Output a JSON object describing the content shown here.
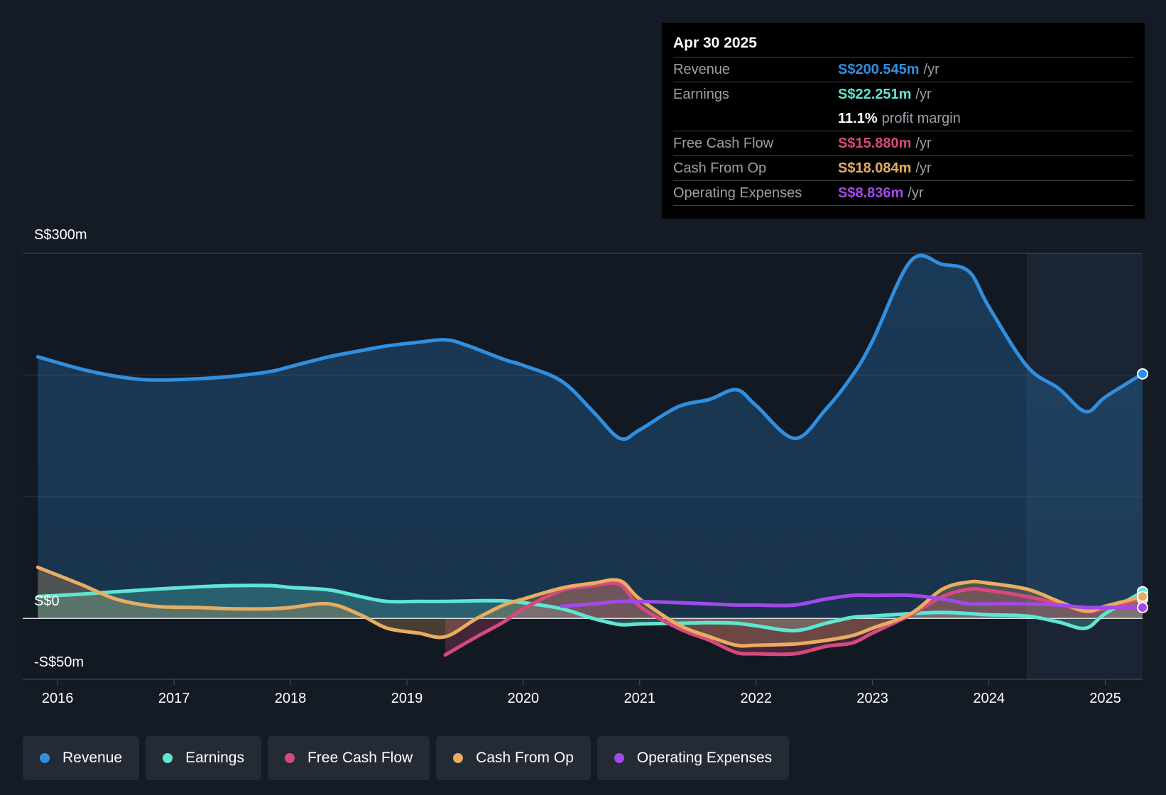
{
  "tooltip": {
    "date": "Apr 30 2025",
    "rows": [
      {
        "label": "Revenue",
        "value": "S$200.545m",
        "unit": "/yr",
        "color": "#2f8fe0"
      },
      {
        "label": "Earnings",
        "value": "S$22.251m",
        "unit": "/yr",
        "color": "#5ee6d2"
      },
      {
        "label": "",
        "value": "11.1%",
        "unit": "profit margin",
        "color": "#ffffff"
      },
      {
        "label": "Free Cash Flow",
        "value": "S$15.880m",
        "unit": "/yr",
        "color": "#d6497f"
      },
      {
        "label": "Cash From Op",
        "value": "S$18.084m",
        "unit": "/yr",
        "color": "#e8ad60"
      },
      {
        "label": "Operating Expenses",
        "value": "S$8.836m",
        "unit": "/yr",
        "color": "#a24ae8"
      }
    ]
  },
  "axis": {
    "y_top_label": "S$300m",
    "y_zero_label": "S$0",
    "y_bottom_label": "-S$50m"
  },
  "legend": [
    {
      "label": "Revenue",
      "color": "#2f8fe0"
    },
    {
      "label": "Earnings",
      "color": "#5ee6d2"
    },
    {
      "label": "Free Cash Flow",
      "color": "#d6497f"
    },
    {
      "label": "Cash From Op",
      "color": "#e8ad60"
    },
    {
      "label": "Operating Expenses",
      "color": "#a24ae8"
    }
  ],
  "chart_data": {
    "type": "line",
    "title": "",
    "xlabel": "",
    "ylabel": "",
    "xlim": [
      2015.7,
      2025.32
    ],
    "ylim": [
      -50,
      300
    ],
    "x_ticks": [
      2016,
      2017,
      2018,
      2019,
      2020,
      2021,
      2022,
      2023,
      2024,
      2025
    ],
    "x_tick_labels": [
      "2016",
      "2017",
      "2018",
      "2019",
      "2020",
      "2021",
      "2022",
      "2023",
      "2024",
      "2025"
    ],
    "forecast_start": 2024.33,
    "series": [
      {
        "name": "Revenue",
        "color": "#2f8fe0",
        "fill": true,
        "points": [
          [
            2015.83,
            215
          ],
          [
            2016.2,
            205
          ],
          [
            2016.5,
            199
          ],
          [
            2016.8,
            196
          ],
          [
            2017.2,
            197
          ],
          [
            2017.5,
            199
          ],
          [
            2017.83,
            203
          ],
          [
            2018.0,
            207
          ],
          [
            2018.33,
            215
          ],
          [
            2018.6,
            220
          ],
          [
            2018.83,
            224
          ],
          [
            2019.1,
            227
          ],
          [
            2019.33,
            229
          ],
          [
            2019.5,
            225
          ],
          [
            2019.83,
            213
          ],
          [
            2020.0,
            208
          ],
          [
            2020.33,
            195
          ],
          [
            2020.6,
            170
          ],
          [
            2020.83,
            148
          ],
          [
            2021.0,
            155
          ],
          [
            2021.33,
            174
          ],
          [
            2021.6,
            180
          ],
          [
            2021.83,
            188
          ],
          [
            2022.0,
            175
          ],
          [
            2022.33,
            148
          ],
          [
            2022.6,
            172
          ],
          [
            2022.83,
            200
          ],
          [
            2023.0,
            228
          ],
          [
            2023.33,
            294
          ],
          [
            2023.6,
            291
          ],
          [
            2023.83,
            285
          ],
          [
            2024.0,
            256
          ],
          [
            2024.33,
            207
          ],
          [
            2024.6,
            189
          ],
          [
            2024.83,
            170
          ],
          [
            2025.0,
            182
          ],
          [
            2025.32,
            201
          ]
        ]
      },
      {
        "name": "Earnings",
        "color": "#5ee6d2",
        "fill": true,
        "points": [
          [
            2015.83,
            18
          ],
          [
            2016.2,
            20
          ],
          [
            2016.5,
            22
          ],
          [
            2016.83,
            24
          ],
          [
            2017.2,
            26
          ],
          [
            2017.5,
            27
          ],
          [
            2017.83,
            27
          ],
          [
            2018.0,
            25.5
          ],
          [
            2018.33,
            23.5
          ],
          [
            2018.6,
            18
          ],
          [
            2018.83,
            14
          ],
          [
            2019.1,
            14
          ],
          [
            2019.33,
            14
          ],
          [
            2019.6,
            14.5
          ],
          [
            2019.83,
            14.5
          ],
          [
            2020.0,
            13
          ],
          [
            2020.33,
            8
          ],
          [
            2020.6,
            0
          ],
          [
            2020.83,
            -5
          ],
          [
            2021.0,
            -4.5
          ],
          [
            2021.33,
            -4
          ],
          [
            2021.6,
            -3.5
          ],
          [
            2021.83,
            -4
          ],
          [
            2022.0,
            -6
          ],
          [
            2022.33,
            -10
          ],
          [
            2022.6,
            -4
          ],
          [
            2022.83,
            1
          ],
          [
            2023.0,
            2
          ],
          [
            2023.33,
            4
          ],
          [
            2023.6,
            5
          ],
          [
            2023.83,
            4
          ],
          [
            2024.0,
            3
          ],
          [
            2024.33,
            2
          ],
          [
            2024.6,
            -3
          ],
          [
            2024.83,
            -8
          ],
          [
            2025.0,
            4
          ],
          [
            2025.32,
            22
          ]
        ]
      },
      {
        "name": "Free Cash Flow",
        "color": "#d6497f",
        "fill": true,
        "points": [
          [
            2019.33,
            -30
          ],
          [
            2019.6,
            -15
          ],
          [
            2019.83,
            -3
          ],
          [
            2020.0,
            8
          ],
          [
            2020.33,
            23
          ],
          [
            2020.6,
            27
          ],
          [
            2020.83,
            28
          ],
          [
            2021.0,
            10
          ],
          [
            2021.33,
            -8
          ],
          [
            2021.6,
            -18
          ],
          [
            2021.83,
            -28
          ],
          [
            2022.0,
            -29
          ],
          [
            2022.33,
            -29
          ],
          [
            2022.6,
            -23
          ],
          [
            2022.83,
            -20
          ],
          [
            2023.0,
            -12
          ],
          [
            2023.33,
            3
          ],
          [
            2023.6,
            18
          ],
          [
            2023.83,
            24
          ],
          [
            2024.0,
            23
          ],
          [
            2024.33,
            18
          ],
          [
            2024.6,
            12
          ],
          [
            2024.83,
            6
          ],
          [
            2025.0,
            8
          ],
          [
            2025.32,
            16
          ]
        ]
      },
      {
        "name": "Cash From Op",
        "color": "#e8ad60",
        "fill": true,
        "points": [
          [
            2015.83,
            42
          ],
          [
            2016.2,
            28
          ],
          [
            2016.5,
            16
          ],
          [
            2016.83,
            10
          ],
          [
            2017.2,
            9
          ],
          [
            2017.5,
            8
          ],
          [
            2017.83,
            8
          ],
          [
            2018.0,
            9
          ],
          [
            2018.33,
            12
          ],
          [
            2018.6,
            3
          ],
          [
            2018.83,
            -8
          ],
          [
            2019.1,
            -12
          ],
          [
            2019.33,
            -15
          ],
          [
            2019.6,
            0
          ],
          [
            2019.83,
            11
          ],
          [
            2020.0,
            16
          ],
          [
            2020.33,
            25
          ],
          [
            2020.6,
            29
          ],
          [
            2020.83,
            31
          ],
          [
            2021.0,
            16
          ],
          [
            2021.33,
            -5
          ],
          [
            2021.6,
            -15
          ],
          [
            2021.83,
            -22
          ],
          [
            2022.0,
            -22
          ],
          [
            2022.33,
            -21
          ],
          [
            2022.6,
            -18
          ],
          [
            2022.83,
            -14
          ],
          [
            2023.0,
            -8
          ],
          [
            2023.33,
            4
          ],
          [
            2023.6,
            24
          ],
          [
            2023.83,
            30
          ],
          [
            2024.0,
            29
          ],
          [
            2024.33,
            24
          ],
          [
            2024.6,
            14
          ],
          [
            2024.83,
            6
          ],
          [
            2025.0,
            10
          ],
          [
            2025.32,
            18
          ]
        ]
      },
      {
        "name": "Operating Expenses",
        "color": "#a24ae8",
        "fill": false,
        "points": [
          [
            2020.33,
            10
          ],
          [
            2020.6,
            12
          ],
          [
            2020.83,
            14
          ],
          [
            2021.0,
            14
          ],
          [
            2021.33,
            13
          ],
          [
            2021.6,
            12
          ],
          [
            2021.83,
            11
          ],
          [
            2022.0,
            11
          ],
          [
            2022.33,
            11
          ],
          [
            2022.6,
            16
          ],
          [
            2022.83,
            19
          ],
          [
            2023.0,
            19
          ],
          [
            2023.33,
            19
          ],
          [
            2023.6,
            16
          ],
          [
            2023.83,
            12
          ],
          [
            2024.0,
            12
          ],
          [
            2024.33,
            12
          ],
          [
            2024.6,
            11
          ],
          [
            2024.83,
            9
          ],
          [
            2025.0,
            9
          ],
          [
            2025.32,
            9
          ]
        ]
      }
    ]
  }
}
